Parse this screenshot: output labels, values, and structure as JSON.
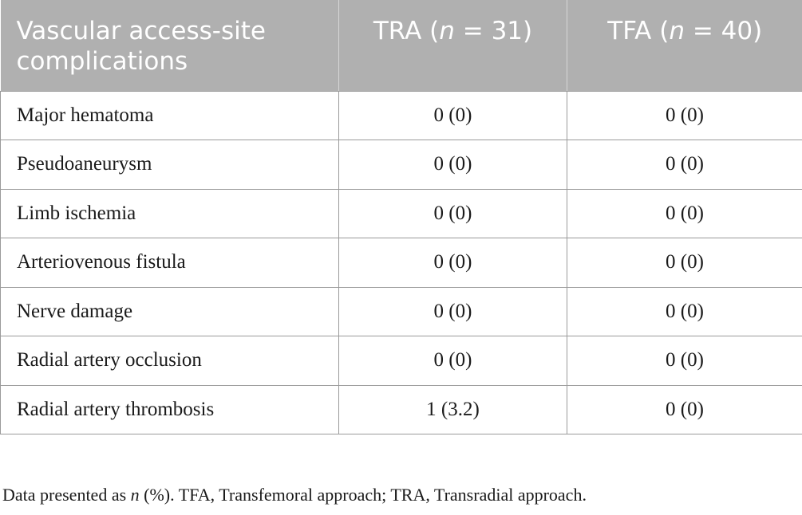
{
  "table": {
    "headers": {
      "complication": "Vascular access-site complications",
      "tra_prefix": "TRA (",
      "tra_n": "n",
      "tra_suffix": " = 31)",
      "tfa_prefix": "TFA (",
      "tfa_n": "n",
      "tfa_suffix": " = 40)"
    },
    "rows": [
      {
        "label": "Major hematoma",
        "tra": "0 (0)",
        "tfa": "0 (0)"
      },
      {
        "label": "Pseudoaneurysm",
        "tra": "0 (0)",
        "tfa": "0 (0)"
      },
      {
        "label": "Limb ischemia",
        "tra": "0 (0)",
        "tfa": "0 (0)"
      },
      {
        "label": "Arteriovenous fistula",
        "tra": "0 (0)",
        "tfa": "0 (0)"
      },
      {
        "label": "Nerve damage",
        "tra": "0 (0)",
        "tfa": "0 (0)"
      },
      {
        "label": "Radial artery occlusion",
        "tra": "0 (0)",
        "tfa": "0 (0)"
      },
      {
        "label": "Radial artery thrombosis",
        "tra": "1 (3.2)",
        "tfa": "0 (0)"
      }
    ]
  },
  "footnote": {
    "prefix": "Data presented as ",
    "n": "n",
    "suffix": " (%). TFA, Transfemoral approach; TRA, Transradial approach."
  },
  "colors": {
    "header_bg": "#b0b0b0",
    "header_text": "#ffffff",
    "border": "#9a9a9a"
  }
}
